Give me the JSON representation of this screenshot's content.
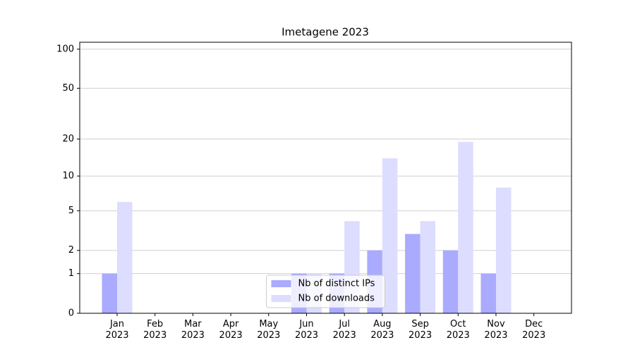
{
  "chart_data": {
    "type": "bar",
    "title": "Imetagene 2023",
    "categories": [
      "Jan 2023",
      "Feb 2023",
      "Mar 2023",
      "Apr 2023",
      "May 2023",
      "Jun 2023",
      "Jul 2023",
      "Aug 2023",
      "Sep 2023",
      "Oct 2023",
      "Nov 2023",
      "Dec 2023"
    ],
    "series": [
      {
        "name": "Nb of distinct IPs",
        "color": "#aaaaff",
        "values": [
          1,
          0,
          0,
          0,
          0,
          1,
          1,
          2,
          3,
          2,
          1,
          0
        ]
      },
      {
        "name": "Nb of downloads",
        "color": "#ddddff",
        "values": [
          6,
          0,
          0,
          0,
          0,
          1,
          4,
          14,
          4,
          19,
          8,
          0
        ]
      }
    ],
    "yscale": "log1p",
    "ylim": [
      0,
      113
    ],
    "yticks": [
      0,
      1,
      2,
      5,
      10,
      20,
      50,
      100
    ],
    "grid": true,
    "legend": "lower center"
  }
}
